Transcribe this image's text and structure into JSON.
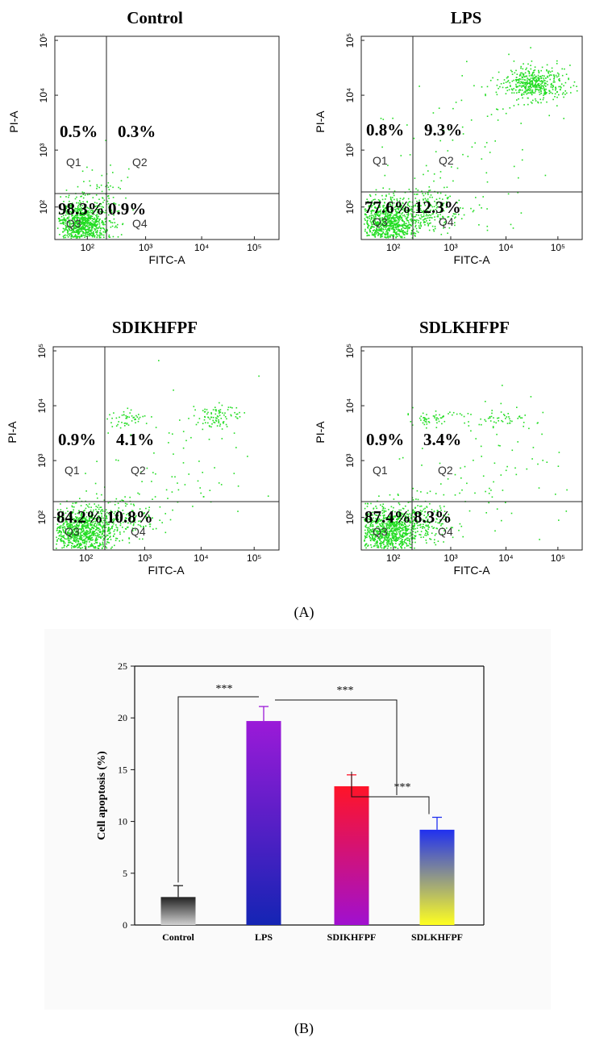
{
  "panel_a_label": "(A)",
  "panel_b_label": "(B)",
  "chart_data": [
    {
      "type": "scatter",
      "title": "Control",
      "xlabel": "FITC-A",
      "ylabel": "PI-A",
      "x_ticks": [
        "10²",
        "10³",
        "10⁴",
        "10⁵"
      ],
      "y_ticks": [
        "10²",
        "10³",
        "10⁴",
        "10⁵"
      ],
      "gate": {
        "x": 200,
        "y": 200
      },
      "quadrants": [
        {
          "name": "Q1",
          "percent": "0.5%"
        },
        {
          "name": "Q2",
          "percent": "0.3%"
        },
        {
          "name": "Q3",
          "percent": "98.3%"
        },
        {
          "name": "Q4",
          "percent": "0.9%"
        }
      ]
    },
    {
      "type": "scatter",
      "title": "LPS",
      "xlabel": "FITC-A",
      "ylabel": "PI-A",
      "x_ticks": [
        "10²",
        "10³",
        "10⁴",
        "10⁵"
      ],
      "y_ticks": [
        "10²",
        "10³",
        "10⁴",
        "10⁵"
      ],
      "gate": {
        "x": 200,
        "y": 200
      },
      "quadrants": [
        {
          "name": "Q1",
          "percent": "0.8%"
        },
        {
          "name": "Q2",
          "percent": "9.3%"
        },
        {
          "name": "Q3",
          "percent": "77.6%"
        },
        {
          "name": "Q4",
          "percent": "12.3%"
        }
      ]
    },
    {
      "type": "scatter",
      "title": "SDIKHFPF",
      "xlabel": "FITC-A",
      "ylabel": "PI-A",
      "x_ticks": [
        "10²",
        "10³",
        "10⁴",
        "10⁵"
      ],
      "y_ticks": [
        "10²",
        "10³",
        "10⁴",
        "10⁵"
      ],
      "gate": {
        "x": 200,
        "y": 200
      },
      "quadrants": [
        {
          "name": "Q1",
          "percent": "0.9%"
        },
        {
          "name": "Q2",
          "percent": "4.1%"
        },
        {
          "name": "Q3",
          "percent": "84.2%"
        },
        {
          "name": "Q4",
          "percent": "10.8%"
        }
      ]
    },
    {
      "type": "scatter",
      "title": "SDLKHFPF",
      "xlabel": "FITC-A",
      "ylabel": "PI-A",
      "x_ticks": [
        "10²",
        "10³",
        "10⁴",
        "10⁵"
      ],
      "y_ticks": [
        "10²",
        "10³",
        "10⁴",
        "10⁵"
      ],
      "gate": {
        "x": 200,
        "y": 200
      },
      "quadrants": [
        {
          "name": "Q1",
          "percent": "0.9%"
        },
        {
          "name": "Q2",
          "percent": "3.4%"
        },
        {
          "name": "Q3",
          "percent": "87.4%"
        },
        {
          "name": "Q4",
          "percent": "8.3%"
        }
      ]
    },
    {
      "type": "bar",
      "ylabel": "Cell apoptosis (%)",
      "ylim": [
        0,
        25
      ],
      "yticks": [
        0,
        5,
        10,
        15,
        20,
        25
      ],
      "categories": [
        "Control",
        "LPS",
        "SDIKHFPF",
        "SDLKHFPF"
      ],
      "values": [
        2.7,
        19.7,
        13.4,
        9.2
      ],
      "errors": [
        1.1,
        1.4,
        1.1,
        1.2
      ],
      "bar_gradients": [
        [
          "#222222",
          "#d0d0d0"
        ],
        [
          "#9b1ad8",
          "#1424b4"
        ],
        [
          "#ff1428",
          "#a010d0"
        ],
        [
          "#2030f0",
          "#ffff20"
        ]
      ],
      "significance": [
        {
          "from": "Control",
          "to": "LPS",
          "label": "***"
        },
        {
          "from": "LPS",
          "to": "SDLKHFPF",
          "label": "***"
        },
        {
          "from": "SDIKHFPF",
          "to": "SDLKHFPF",
          "label": "***"
        }
      ]
    }
  ]
}
